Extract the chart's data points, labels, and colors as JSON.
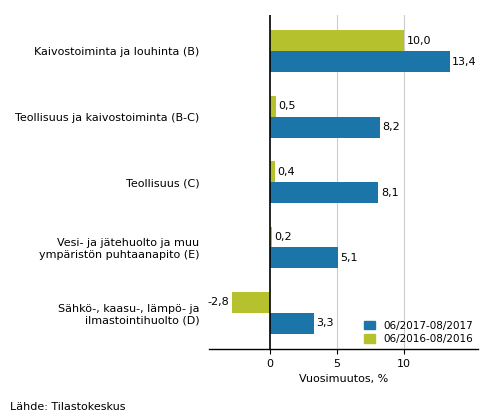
{
  "categories": [
    "Kaivostoiminta ja louhinta (B)",
    "Teollisuus ja kaivostoiminta (B-C)",
    "Teollisuus (C)",
    "Vesi- ja jätehuolto ja muu\nympäristön puhtaanapito (E)",
    "Sähkö-, kaasu-, lämpö- ja\nilmastointihuolto (D)"
  ],
  "series_2017": [
    13.4,
    8.2,
    8.1,
    5.1,
    3.3
  ],
  "series_2016": [
    10.0,
    0.5,
    0.4,
    0.2,
    -2.8
  ],
  "color_2017": "#1c75a8",
  "color_2016": "#b5c22e",
  "legend_labels": [
    "06/2017-08/2017",
    "06/2016-08/2016"
  ],
  "xlabel": "Vuosimuutos, %",
  "xlim": [
    -4.5,
    15.5
  ],
  "xticks": [
    0,
    5,
    10
  ],
  "xtick_labels": [
    "0",
    "5",
    "10"
  ],
  "footnote": "Lähde: Tilastokeskus",
  "bar_height": 0.32,
  "label_fontsize": 8,
  "tick_fontsize": 8,
  "footnote_fontsize": 8
}
